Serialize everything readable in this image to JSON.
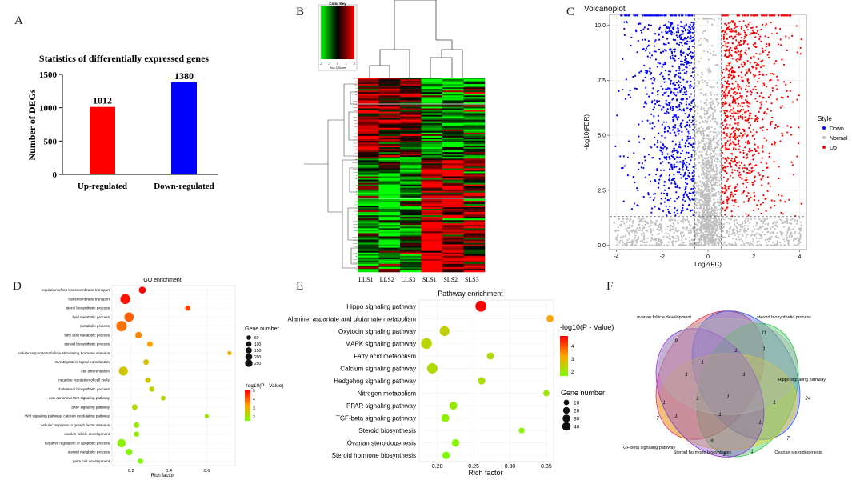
{
  "panel_labels": [
    "A",
    "B",
    "C",
    "D",
    "E",
    "F"
  ],
  "colors": {
    "up": "#ff0000",
    "down": "#0000ff",
    "normal": "#bebebe",
    "dot_low": "#7cfc00",
    "dot_high": "#ff0000"
  },
  "chart_data": [
    {
      "id": "A",
      "type": "bar",
      "title": "Statistics of differentially expressed genes",
      "ylabel": "Number of  DEGs",
      "categories": [
        "Up-regulated",
        "Down-regulated"
      ],
      "values": [
        1012,
        1380
      ],
      "data_labels": [
        "1012",
        "1380"
      ],
      "bar_colors": [
        "#ff0000",
        "#0000ff"
      ],
      "ylim": [
        0,
        1500
      ],
      "yticks": [
        0,
        500,
        1000,
        1500
      ],
      "ytick_labels": [
        "0",
        "500",
        "1000",
        "1500"
      ]
    },
    {
      "id": "B",
      "type": "heatmap",
      "key_title": "Color Key",
      "key_xlabel": "Row Z-Score",
      "key_ticks": [
        "-2",
        "-1",
        "0",
        "1",
        "2"
      ],
      "columns": [
        "LLS1",
        "LLS2",
        "LLS3",
        "SLS1",
        "SLS2",
        "SLS3"
      ],
      "column_gradient": [
        "#ff0000",
        "#00ff00"
      ]
    },
    {
      "id": "C",
      "type": "scatter",
      "title": "Volcanoplot",
      "xlabel": "Log2(FC)",
      "ylabel": "-log10(FDR)",
      "xlim": [
        -4.3,
        4.3
      ],
      "ylim": [
        -0.2,
        10.5
      ],
      "xticks": [
        -4,
        -2,
        0,
        2,
        4
      ],
      "xtick_labels": [
        "-4",
        "-2",
        "0",
        "2",
        "4"
      ],
      "yticks": [
        0,
        2.5,
        5,
        7.5,
        10
      ],
      "ytick_labels": [
        "0.0",
        "2.5",
        "5.0",
        "7.5",
        "10.0"
      ],
      "fc_threshold": 0.58,
      "fdr_threshold": 1.3,
      "legend_title": "Style",
      "legend": [
        "Down",
        "Normal",
        "Up"
      ]
    },
    {
      "id": "D",
      "type": "scatter",
      "title": "GO enrichment",
      "xlabel": "Rich factor",
      "xlim": [
        0.1,
        0.75
      ],
      "xticks": [
        0.2,
        0.4,
        0.6
      ],
      "xtick_labels": [
        "0.2",
        "0.4",
        "0.6"
      ],
      "color_title": "-log10(P - Value)",
      "color_ticks": [
        "2",
        "3",
        "4",
        "5"
      ],
      "size_title": "Gene number",
      "size_ticks": [
        "50",
        "100",
        "150",
        "200",
        "250"
      ],
      "terms": [
        {
          "label": "regulation of ion transmembrane transport",
          "x": 0.26,
          "size": 90,
          "p": 5.2
        },
        {
          "label": "transmembrane transport",
          "x": 0.17,
          "size": 230,
          "p": 5.0
        },
        {
          "label": "sterol biosynthetic process",
          "x": 0.5,
          "size": 40,
          "p": 4.5
        },
        {
          "label": "lipid metabolic process",
          "x": 0.19,
          "size": 200,
          "p": 4.2
        },
        {
          "label": "metabolic process",
          "x": 0.15,
          "size": 260,
          "p": 4.0
        },
        {
          "label": "fatty acid metabolic process",
          "x": 0.24,
          "size": 80,
          "p": 3.8
        },
        {
          "label": "steroid biosynthetic process",
          "x": 0.3,
          "size": 50,
          "p": 3.5
        },
        {
          "label": "cellular response to follicle-stimulating hormone stimulus",
          "x": 0.72,
          "size": 20,
          "p": 3.2
        },
        {
          "label": "SMAD protein signal transduction",
          "x": 0.28,
          "size": 50,
          "p": 3.0
        },
        {
          "label": "cell differentiation",
          "x": 0.16,
          "size": 180,
          "p": 2.9
        },
        {
          "label": "negative regulation of cell cycle",
          "x": 0.29,
          "size": 50,
          "p": 2.8
        },
        {
          "label": "cholesterol biosynthetic process",
          "x": 0.31,
          "size": 40,
          "p": 2.7
        },
        {
          "label": "non-canonical Wnt signaling pathway",
          "x": 0.37,
          "size": 30,
          "p": 2.6
        },
        {
          "label": "BMP signaling pathway",
          "x": 0.22,
          "size": 50,
          "p": 2.5
        },
        {
          "label": "Wnt signaling pathway, calcium modulating pathway",
          "x": 0.6,
          "size": 20,
          "p": 2.3
        },
        {
          "label": "cellular response to growth factor stimulus",
          "x": 0.23,
          "size": 50,
          "p": 2.2
        },
        {
          "label": "ovarian follicle development",
          "x": 0.23,
          "size": 40,
          "p": 2.1
        },
        {
          "label": "negative regulation of apoptotic process",
          "x": 0.15,
          "size": 150,
          "p": 2.0
        },
        {
          "label": "steroid metabolic process",
          "x": 0.19,
          "size": 80,
          "p": 1.9
        },
        {
          "label": "germ cell development",
          "x": 0.25,
          "size": 40,
          "p": 1.8
        }
      ]
    },
    {
      "id": "E",
      "type": "scatter",
      "title": "Pathway enrichment",
      "xlabel": "Rich factor",
      "xlim": [
        0.175,
        0.36
      ],
      "xticks": [
        0.2,
        0.25,
        0.3,
        0.35
      ],
      "xtick_labels": [
        "0.20",
        "0.25",
        "0.30",
        "0.35"
      ],
      "color_title": "-log10(P - Value)",
      "color_ticks": [
        "2",
        "3",
        "4"
      ],
      "size_title": "Gene number",
      "size_ticks": [
        "10",
        "20",
        "30",
        "40"
      ],
      "terms": [
        {
          "label": "Hippo signaling pathway",
          "x": 0.26,
          "size": 40,
          "p": 4.6
        },
        {
          "label": "Alanine, aspartate and glutamate metabolism",
          "x": 0.355,
          "size": 12,
          "p": 3.1
        },
        {
          "label": "Oxytocin signaling pathway",
          "x": 0.21,
          "size": 30,
          "p": 2.4
        },
        {
          "label": "MAPK signaling pathway",
          "x": 0.185,
          "size": 38,
          "p": 2.3
        },
        {
          "label": "Fatty acid metabolism",
          "x": 0.273,
          "size": 12,
          "p": 2.2
        },
        {
          "label": "Calcium signaling pathway",
          "x": 0.193,
          "size": 34,
          "p": 2.2
        },
        {
          "label": "Hedgehog signaling pathway",
          "x": 0.261,
          "size": 13,
          "p": 2.1
        },
        {
          "label": "Nitrogen metabolism",
          "x": 0.35,
          "size": 8,
          "p": 2.0
        },
        {
          "label": "PPAR signaling pathway",
          "x": 0.222,
          "size": 17,
          "p": 1.9
        },
        {
          "label": "TGF-beta signaling pathway",
          "x": 0.211,
          "size": 17,
          "p": 1.8
        },
        {
          "label": "Steroid biosynthesis",
          "x": 0.316,
          "size": 6,
          "p": 1.7
        },
        {
          "label": "Ovarian steroidogenesis",
          "x": 0.225,
          "size": 14,
          "p": 1.7
        },
        {
          "label": "Steroid hormone biosynthesis",
          "x": 0.212,
          "size": 14,
          "p": 1.6
        }
      ]
    },
    {
      "id": "F",
      "type": "venn",
      "sets": [
        "ovarian follicle development",
        "steroid biosynthetic process",
        "Hippo signaling pathway",
        "Ovarian steroidogenesis",
        "Steroid hormone biosynthesis",
        "TGF beta signaling pathway"
      ],
      "set_colors": [
        "#e8383d",
        "#3c5ce8",
        "#2ec24a",
        "#e8d21e",
        "#8a3cd0",
        "#b0b0b0"
      ],
      "region_counts": [
        "9",
        "11",
        "24",
        "7",
        "6",
        "7",
        "1",
        "1",
        "3",
        "1",
        "1",
        "1",
        "1",
        "1",
        "1",
        "1",
        "1",
        "1",
        "1",
        "1"
      ]
    }
  ]
}
